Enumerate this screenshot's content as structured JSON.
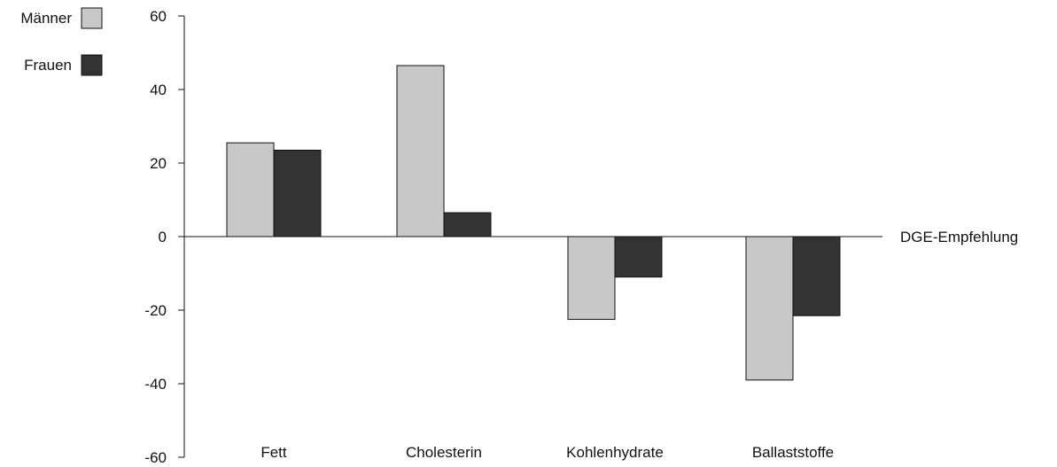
{
  "chart_data": {
    "type": "bar",
    "categories": [
      "Fett",
      "Cholesterin",
      "Kohlenhydrate",
      "Ballaststoffe"
    ],
    "series": [
      {
        "name": "Männer",
        "values": [
          25.5,
          46.5,
          -22.5,
          -39
        ],
        "color": "#c8c8c8"
      },
      {
        "name": "Frauen",
        "values": [
          23.5,
          6.5,
          -11,
          -21.5
        ],
        "color": "#333333"
      }
    ],
    "ylim": [
      -60,
      60
    ],
    "yticks": [
      "60",
      "40",
      "20",
      "0",
      "-20",
      "-40",
      "-60"
    ],
    "reference_line": {
      "value": 0,
      "label": "DGE-Empfehlung"
    },
    "legend_position": "top-left",
    "grid": false
  }
}
